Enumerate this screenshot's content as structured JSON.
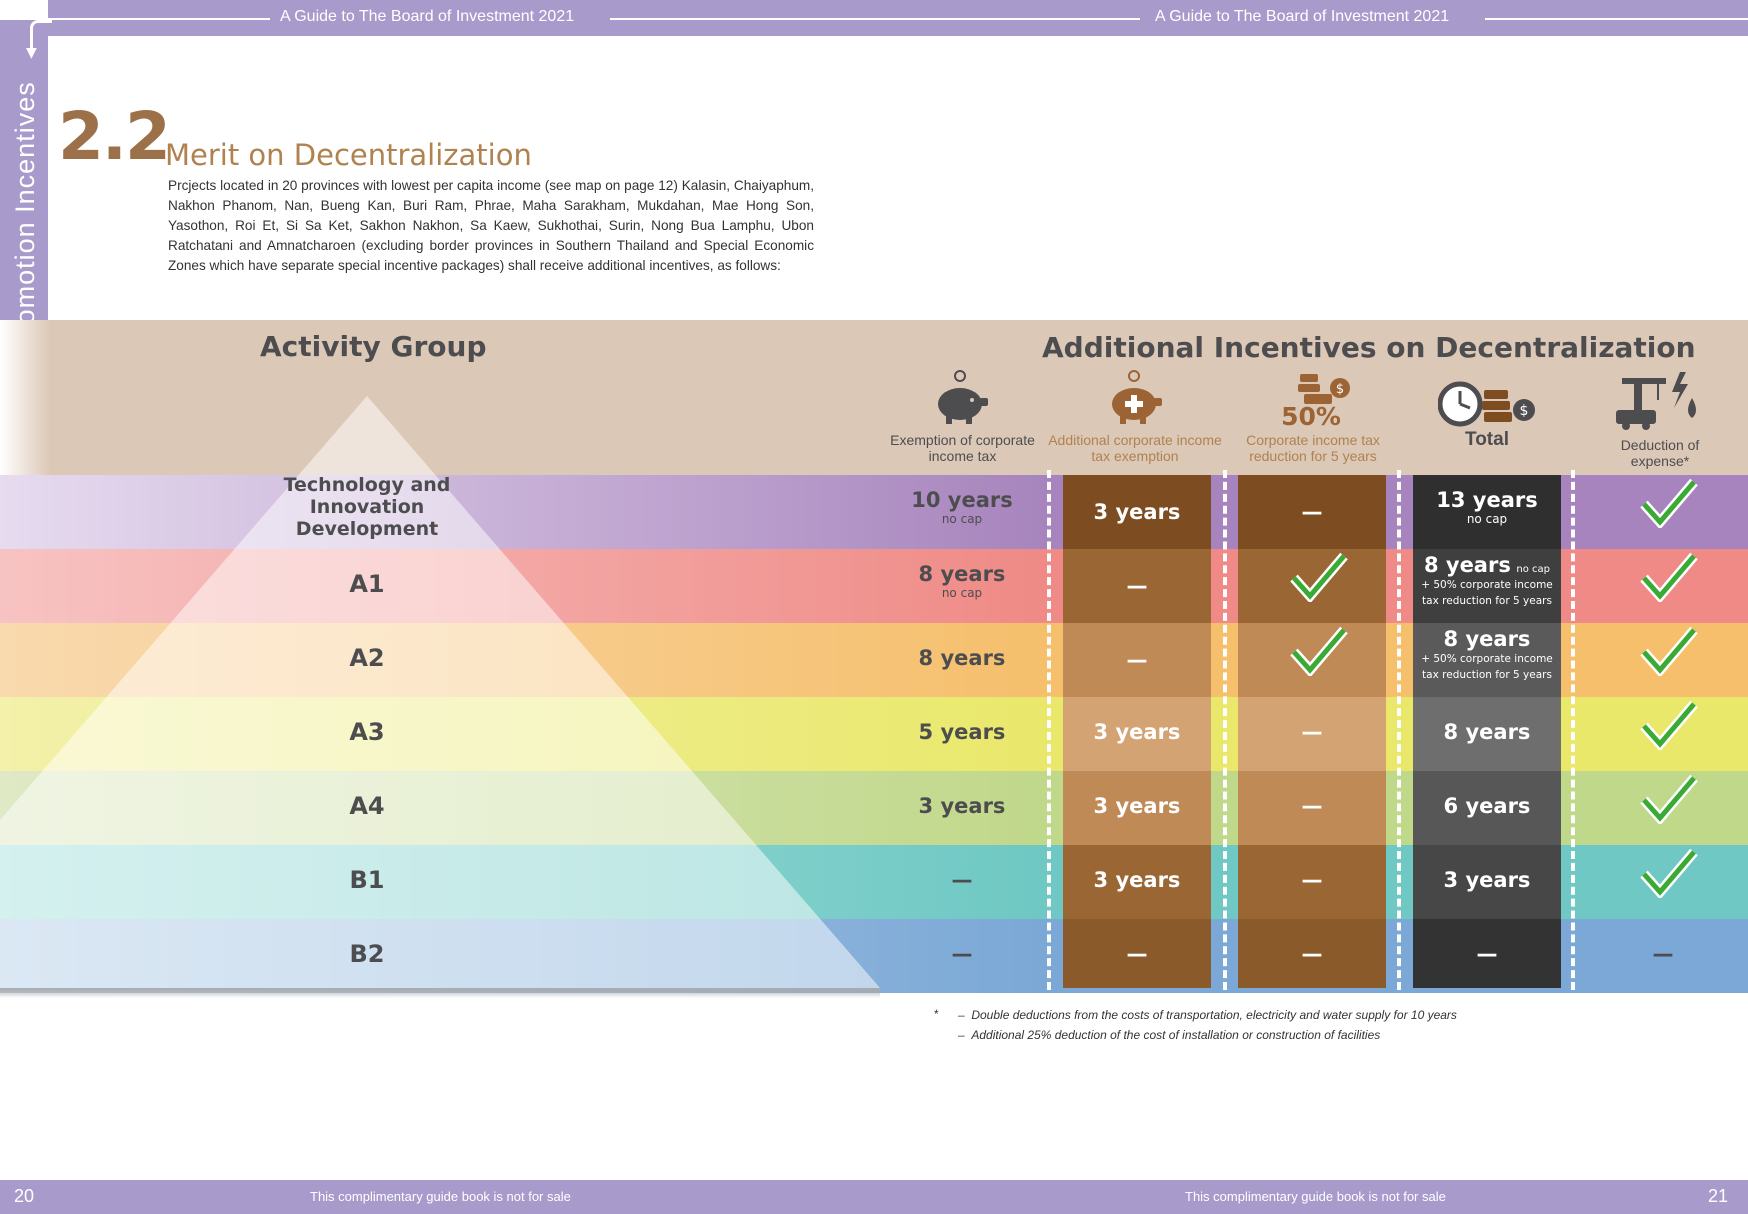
{
  "header": {
    "left": "A Guide to The Board of Investment 2021",
    "right": "A Guide to The Board of Investment 2021"
  },
  "footer": {
    "left": "This complimentary guide book is not for sale",
    "right": "This complimentary guide book is not for sale",
    "page_left": "20",
    "page_right": "21"
  },
  "side_tab": "Criteria for Granting Promotion Incentives",
  "section": {
    "number": "2.2",
    "title": "Merit on Decentralization",
    "intro": "Prcjects located in 20 provinces with lowest per capita income (see map on page 12) Kalasin, Chaiyaphum, Nakhon Phanom, Nan, Bueng Kan, Buri Ram, Phrae, Maha Sarakham, Mukdahan, Mae Hong Son, Yasothon, Roi Et, Si Sa Ket, Sakhon Nakhon, Sa Kaew, Sukhothai, Surin, Nong Bua Lamphu, Ubon Ratchatani and Amnatcharoen (excluding border provinces in Southern Thailand and Special Economic  Zones which have separate special incentive packages) shall receive additional incentives, as follows:"
  },
  "table": {
    "activity_header": "Activity Group",
    "incentive_header": "Additional Incentives on Decentralization",
    "columns": [
      {
        "icon": "piggy-bank-icon",
        "label": "Exemption of corporate income tax"
      },
      {
        "icon": "piggy-bank-plus-icon",
        "label": "Additional corporate income tax exemption"
      },
      {
        "icon": "coins-icon",
        "big": "50%",
        "label": "Corporate income tax reduction for 5 years"
      },
      {
        "icon": "clock-coins-icon",
        "label": "Total"
      },
      {
        "icon": "crane-truck-icon",
        "label": "Deduction of expense*"
      }
    ],
    "rows": [
      {
        "group": "Technology and Innovation Development",
        "exempt": "10 years",
        "exempt_sub": "no cap",
        "additional": "3 years",
        "reduction": "—",
        "total": "13 years",
        "total_sub": "no cap",
        "deduction": "check"
      },
      {
        "group": "A1",
        "exempt": "8 years",
        "exempt_sub": "no cap",
        "additional": "—",
        "reduction": "check",
        "total": "8 years",
        "total_cap": "no cap",
        "total_sub": "+ 50% corporate income",
        "total_sub2": "tax reduction for 5 years",
        "deduction": "check"
      },
      {
        "group": "A2",
        "exempt": "8 years",
        "exempt_sub": "",
        "additional": "—",
        "reduction": "check",
        "total": "8 years",
        "total_sub": "+ 50% corporate income",
        "total_sub2": "tax reduction for 5 years",
        "deduction": "check"
      },
      {
        "group": "A3",
        "exempt": "5 years",
        "additional": "3 years",
        "reduction": "—",
        "total": "8 years",
        "deduction": "check"
      },
      {
        "group": "A4",
        "exempt": "3 years",
        "additional": "3 years",
        "reduction": "—",
        "total": "6 years",
        "deduction": "check"
      },
      {
        "group": "B1",
        "exempt": "—",
        "additional": "3 years",
        "reduction": "—",
        "total": "3 years",
        "deduction": "check"
      },
      {
        "group": "B2",
        "exempt": "—",
        "additional": "—",
        "reduction": "—",
        "total": "—",
        "deduction": "—"
      }
    ],
    "row_colors": [
      "#a784bd",
      "#ef8a86",
      "#f5bf6c",
      "#e9e86b",
      "#c0d88a",
      "#6fc8c3",
      "#7ba8d6"
    ],
    "additional_colors": [
      "#7d4c20",
      "#9a6634",
      "#c08a57",
      "#d4a373",
      "#c08a57",
      "#9a6634",
      "#8a5a2a"
    ],
    "reduction_colors": [
      "#7d4c20",
      "#9a6634",
      "#c08a57",
      "#d4a373",
      "#c08a57",
      "#9a6634",
      "#8a5a2a"
    ],
    "total_colors": [
      "#2f2f2f",
      "#3f3f3f",
      "#5a5a5a",
      "#6e6e6e",
      "#575757",
      "#474747",
      "#333333"
    ]
  },
  "notes": {
    "star": "*",
    "line1": "Double deductions from the costs of transportation, electricity and water supply for 10 years",
    "line2": "Additional 25% deduction of the cost of installation or construction of facilities"
  }
}
